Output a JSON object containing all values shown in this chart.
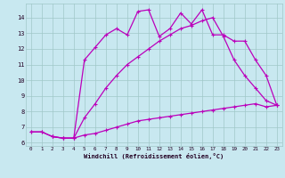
{
  "xlabel": "Windchill (Refroidissement éolien,°C)",
  "bg_color": "#c8e8f0",
  "grid_color": "#a0c8c8",
  "line_color": "#bb00bb",
  "xlim": [
    -0.5,
    23.5
  ],
  "ylim": [
    5.8,
    14.9
  ],
  "yticks": [
    6,
    7,
    8,
    9,
    10,
    11,
    12,
    13,
    14
  ],
  "xticks": [
    0,
    1,
    2,
    3,
    4,
    5,
    6,
    7,
    8,
    9,
    10,
    11,
    12,
    13,
    14,
    15,
    16,
    17,
    18,
    19,
    20,
    21,
    22,
    23
  ],
  "series1_x": [
    0,
    1,
    2,
    3,
    4,
    5,
    6,
    7,
    8,
    9,
    10,
    11,
    12,
    13,
    14,
    15,
    16,
    17,
    18,
    19,
    20,
    21,
    22,
    23
  ],
  "series1_y": [
    6.7,
    6.7,
    6.4,
    6.3,
    6.3,
    6.5,
    6.6,
    6.8,
    7.0,
    7.2,
    7.4,
    7.5,
    7.6,
    7.7,
    7.8,
    7.9,
    8.0,
    8.1,
    8.2,
    8.3,
    8.4,
    8.5,
    8.3,
    8.4
  ],
  "series2_x": [
    0,
    1,
    2,
    3,
    4,
    5,
    6,
    7,
    8,
    9,
    10,
    11,
    12,
    13,
    14,
    15,
    16,
    17,
    18,
    19,
    20,
    21,
    22,
    23
  ],
  "series2_y": [
    6.7,
    6.7,
    6.4,
    6.3,
    6.3,
    7.6,
    8.5,
    9.5,
    10.3,
    11.0,
    11.5,
    12.0,
    12.5,
    12.9,
    13.3,
    13.5,
    13.8,
    14.0,
    12.8,
    11.3,
    10.3,
    9.5,
    8.7,
    8.4
  ],
  "series3_x": [
    2,
    3,
    4,
    5,
    6,
    7,
    8,
    9,
    10,
    11,
    12,
    13,
    14,
    15,
    16,
    17,
    18,
    19,
    20,
    21,
    22,
    23
  ],
  "series3_y": [
    6.4,
    6.3,
    6.3,
    11.3,
    12.1,
    12.9,
    13.3,
    12.9,
    14.4,
    14.5,
    12.8,
    13.3,
    14.3,
    13.6,
    14.5,
    12.9,
    12.9,
    12.5,
    12.5,
    11.3,
    10.3,
    8.4
  ]
}
